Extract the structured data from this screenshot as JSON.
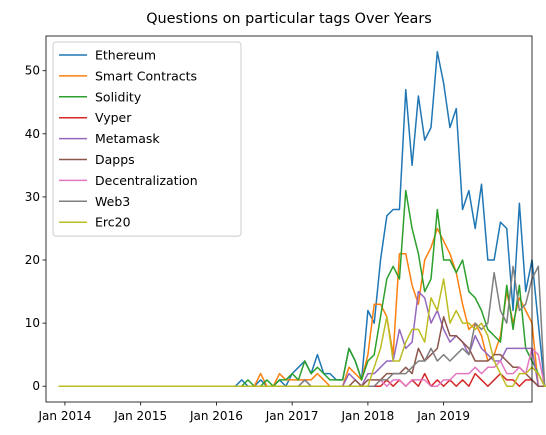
{
  "chart_data": {
    "type": "line",
    "title": "Questions on particular tags Over Years",
    "xlabel": "",
    "ylabel": "",
    "x_start": "2013-12",
    "x_end": "2019-12",
    "xlim": [
      "2013-10",
      "2020-03"
    ],
    "ylim": [
      -2.5,
      55.5
    ],
    "grid": false,
    "legend_position": "top-left",
    "x_ticks": [
      {
        "date": "2014-01",
        "label": "Jan 2014"
      },
      {
        "date": "2015-01",
        "label": "Jan 2015"
      },
      {
        "date": "2016-01",
        "label": "Jan 2016"
      },
      {
        "date": "2017-01",
        "label": "Jan 2017"
      },
      {
        "date": "2018-01",
        "label": "Jan 2018"
      },
      {
        "date": "2019-01",
        "label": "Jan 2019"
      }
    ],
    "y_ticks": [
      0,
      10,
      20,
      30,
      40,
      50
    ],
    "series": [
      {
        "name": "Ethereum",
        "color": "#1f77b4",
        "values": [
          0,
          0,
          0,
          0,
          0,
          0,
          0,
          0,
          0,
          0,
          0,
          0,
          0,
          0,
          0,
          0,
          0,
          0,
          0,
          0,
          0,
          0,
          0,
          0,
          0,
          0,
          0,
          0,
          0,
          1,
          0,
          0,
          1,
          0,
          0,
          1,
          0,
          2,
          3,
          4,
          2,
          5,
          2,
          2,
          1,
          1,
          6,
          4,
          1,
          12,
          10,
          20,
          27,
          28,
          28,
          47,
          35,
          46,
          39,
          41,
          53,
          48,
          41,
          44,
          28,
          31,
          25,
          32,
          20,
          20,
          26,
          25,
          12,
          29,
          15,
          20,
          10,
          0,
          0,
          0,
          0
        ]
      },
      {
        "name": "Smart Contracts",
        "color": "#ff7f0e",
        "values": [
          0,
          0,
          0,
          0,
          0,
          0,
          0,
          0,
          0,
          0,
          0,
          0,
          0,
          0,
          0,
          0,
          0,
          0,
          0,
          0,
          0,
          0,
          0,
          0,
          0,
          0,
          0,
          0,
          0,
          0,
          0,
          0,
          2,
          0,
          0,
          2,
          1,
          1,
          1,
          1,
          1,
          2,
          1,
          0,
          0,
          0,
          3,
          2,
          1,
          5,
          13,
          13,
          11,
          5,
          21,
          21,
          16,
          13,
          20,
          22,
          25,
          23,
          21,
          18,
          13,
          9,
          10,
          8,
          4,
          5,
          8,
          15,
          10,
          14,
          12,
          10,
          0,
          0,
          0,
          0,
          0
        ]
      },
      {
        "name": "Solidity",
        "color": "#2ca02c",
        "values": [
          0,
          0,
          0,
          0,
          0,
          0,
          0,
          0,
          0,
          0,
          0,
          0,
          0,
          0,
          0,
          0,
          0,
          0,
          0,
          0,
          0,
          0,
          0,
          0,
          0,
          0,
          0,
          0,
          0,
          0,
          1,
          0,
          0,
          1,
          0,
          1,
          1,
          2,
          1,
          4,
          2,
          3,
          2,
          1,
          1,
          1,
          6,
          4,
          1,
          4,
          5,
          11,
          17,
          19,
          17,
          31,
          25,
          21,
          15,
          17,
          28,
          20,
          20,
          18,
          20,
          15,
          14,
          12,
          9,
          8,
          7,
          16,
          9,
          16,
          6,
          4,
          2,
          0,
          0,
          0,
          0
        ]
      },
      {
        "name": "Vyper",
        "color": "#d62728",
        "values": [
          0,
          0,
          0,
          0,
          0,
          0,
          0,
          0,
          0,
          0,
          0,
          0,
          0,
          0,
          0,
          0,
          0,
          0,
          0,
          0,
          0,
          0,
          0,
          0,
          0,
          0,
          0,
          0,
          0,
          0,
          0,
          0,
          0,
          0,
          0,
          0,
          0,
          0,
          0,
          0,
          0,
          0,
          0,
          0,
          0,
          0,
          0,
          0,
          0,
          0,
          0,
          0,
          1,
          0,
          1,
          0,
          1,
          0,
          2,
          0,
          1,
          0,
          1,
          0,
          1,
          0,
          2,
          1,
          0,
          1,
          2,
          1,
          1,
          0,
          1,
          1,
          0,
          0,
          0,
          0,
          0
        ]
      },
      {
        "name": "Metamask",
        "color": "#9467bd",
        "values": [
          0,
          0,
          0,
          0,
          0,
          0,
          0,
          0,
          0,
          0,
          0,
          0,
          0,
          0,
          0,
          0,
          0,
          0,
          0,
          0,
          0,
          0,
          0,
          0,
          0,
          0,
          0,
          0,
          0,
          0,
          0,
          0,
          0,
          0,
          0,
          0,
          0,
          0,
          0,
          1,
          0,
          0,
          0,
          0,
          0,
          0,
          2,
          1,
          0,
          2,
          2,
          3,
          4,
          4,
          9,
          6,
          7,
          15,
          14,
          10,
          12,
          9,
          7,
          8,
          7,
          5,
          8,
          6,
          5,
          4,
          4,
          6,
          6,
          6,
          6,
          6,
          0,
          0,
          0,
          0,
          0
        ]
      },
      {
        "name": "Dapps",
        "color": "#8c564b",
        "values": [
          0,
          0,
          0,
          0,
          0,
          0,
          0,
          0,
          0,
          0,
          0,
          0,
          0,
          0,
          0,
          0,
          0,
          0,
          0,
          0,
          0,
          0,
          0,
          0,
          0,
          0,
          0,
          0,
          0,
          0,
          0,
          0,
          0,
          0,
          0,
          0,
          0,
          0,
          0,
          0,
          0,
          0,
          0,
          0,
          0,
          0,
          0,
          1,
          0,
          1,
          1,
          1,
          2,
          2,
          2,
          3,
          2,
          6,
          4,
          5,
          6,
          11,
          8,
          8,
          7,
          6,
          4,
          4,
          4,
          5,
          5,
          4,
          3,
          3,
          2,
          1,
          0,
          0,
          0,
          0,
          0
        ]
      },
      {
        "name": "Decentralization",
        "color": "#e377c2",
        "values": [
          0,
          0,
          0,
          0,
          0,
          0,
          0,
          0,
          0,
          0,
          0,
          0,
          0,
          0,
          0,
          0,
          0,
          0,
          0,
          0,
          0,
          0,
          0,
          0,
          0,
          0,
          0,
          0,
          0,
          0,
          0,
          0,
          0,
          0,
          0,
          0,
          0,
          0,
          0,
          0,
          0,
          0,
          0,
          0,
          0,
          0,
          0,
          0,
          0,
          0,
          0,
          1,
          0,
          1,
          1,
          0,
          1,
          1,
          1,
          0,
          0,
          1,
          1,
          2,
          2,
          2,
          3,
          2,
          3,
          3,
          4,
          2,
          2,
          3,
          2,
          6,
          5,
          0,
          0,
          0,
          0
        ]
      },
      {
        "name": "Web3",
        "color": "#7f7f7f",
        "values": [
          0,
          0,
          0,
          0,
          0,
          0,
          0,
          0,
          0,
          0,
          0,
          0,
          0,
          0,
          0,
          0,
          0,
          0,
          0,
          0,
          0,
          0,
          0,
          0,
          0,
          0,
          0,
          0,
          0,
          0,
          0,
          0,
          0,
          0,
          0,
          0,
          0,
          0,
          0,
          1,
          0,
          0,
          0,
          0,
          0,
          0,
          0,
          0,
          0,
          0,
          0,
          1,
          1,
          2,
          2,
          2,
          3,
          4,
          4,
          6,
          4,
          5,
          4,
          5,
          6,
          5,
          10,
          9,
          10,
          18,
          12,
          10,
          19,
          12,
          13,
          17,
          19,
          0,
          0,
          0,
          0
        ]
      },
      {
        "name": "Erc20",
        "color": "#bcbd22",
        "values": [
          0,
          0,
          0,
          0,
          0,
          0,
          0,
          0,
          0,
          0,
          0,
          0,
          0,
          0,
          0,
          0,
          0,
          0,
          0,
          0,
          0,
          0,
          0,
          0,
          0,
          0,
          0,
          0,
          0,
          0,
          0,
          0,
          0,
          0,
          0,
          0,
          0,
          0,
          0,
          0,
          0,
          0,
          0,
          0,
          0,
          0,
          0,
          0,
          0,
          0,
          3,
          6,
          11,
          4,
          4,
          7,
          9,
          9,
          7,
          14,
          12,
          17,
          10,
          12,
          10,
          10,
          9,
          10,
          8,
          4,
          2,
          0,
          0,
          2,
          2,
          3,
          2,
          0,
          0,
          0,
          0
        ]
      }
    ]
  }
}
